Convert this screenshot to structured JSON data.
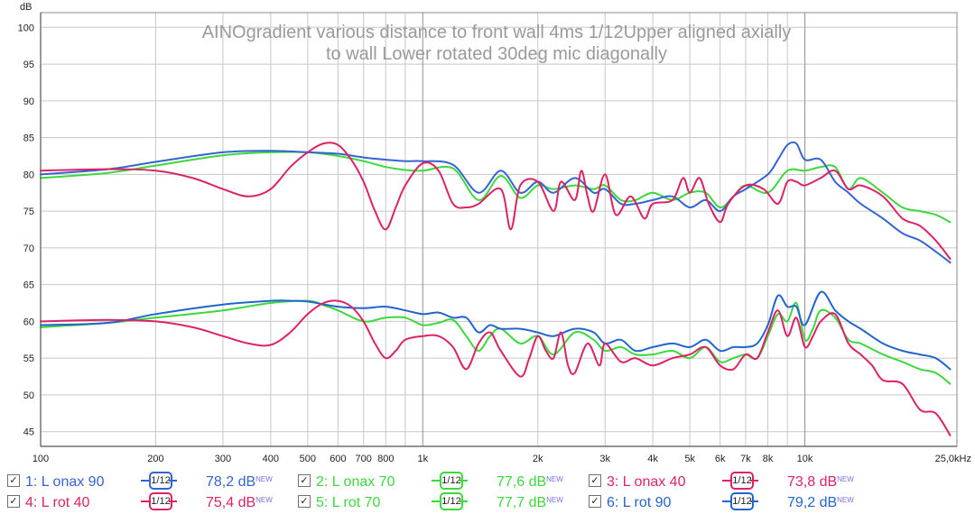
{
  "chart_data": {
    "type": "line",
    "title": "AINOgradient various distance to front wall 4ms 1/12Upper aligned axially to wall  Lower rotated 30deg mic diagonally",
    "title_lines": [
      "AINOgradient various distance to front wall 4ms 1/12Upper aligned axially",
      "to wall  Lower rotated 30deg mic diagonally"
    ],
    "ylabel": "dB",
    "xunit_label": "25,0kHz",
    "xscale": "log",
    "xlim": [
      100,
      25000
    ],
    "ylim": [
      43,
      102
    ],
    "grid": true,
    "y_ticks": [
      45,
      50,
      55,
      60,
      65,
      70,
      75,
      80,
      85,
      90,
      95,
      100
    ],
    "x_ticks": [
      {
        "v": 100,
        "label": "100"
      },
      {
        "v": 200,
        "label": "200"
      },
      {
        "v": 300,
        "label": "300"
      },
      {
        "v": 400,
        "label": "400"
      },
      {
        "v": 500,
        "label": "500"
      },
      {
        "v": 600,
        "label": "600"
      },
      {
        "v": 700,
        "label": "700"
      },
      {
        "v": 800,
        "label": "800"
      },
      {
        "v": 1000,
        "label": "1k"
      },
      {
        "v": 2000,
        "label": "2k"
      },
      {
        "v": 3000,
        "label": "3k"
      },
      {
        "v": 4000,
        "label": "4k"
      },
      {
        "v": 5000,
        "label": "5k"
      },
      {
        "v": 6000,
        "label": "6k"
      },
      {
        "v": 7000,
        "label": "7k"
      },
      {
        "v": 8000,
        "label": "8k"
      },
      {
        "v": 10000,
        "label": "10k"
      }
    ],
    "x_minor_ticks": [
      900,
      9000
    ],
    "x_major_lines": [
      100,
      1000,
      10000
    ],
    "series": [
      {
        "name": "1: L onax 90",
        "color": "#3464d0",
        "smoothing": "1/12",
        "level": "78,2 dB",
        "x": [
          100,
          150,
          200,
          300,
          400,
          500,
          600,
          700,
          800,
          900,
          1000,
          1200,
          1400,
          1600,
          1800,
          2000,
          2200,
          2500,
          2800,
          3000,
          3300,
          3600,
          4000,
          4500,
          5000,
          5500,
          6000,
          6500,
          7000,
          8000,
          8500,
          9000,
          9500,
          10000,
          11000,
          12000,
          13000,
          14000,
          16000,
          18000,
          20000,
          22000,
          24000
        ],
        "y": [
          80.0,
          80.7,
          81.7,
          83.0,
          83.2,
          83.0,
          82.8,
          82.3,
          82.0,
          81.8,
          81.8,
          81.3,
          77.5,
          80.5,
          77.5,
          79.0,
          77.5,
          79.5,
          77.5,
          78.0,
          76.0,
          76.0,
          76.5,
          77.0,
          75.5,
          76.5,
          75.0,
          77.0,
          78.0,
          80.0,
          82.0,
          84.0,
          84.2,
          82.0,
          82.0,
          79.0,
          77.5,
          76.0,
          74.0,
          72.0,
          71.0,
          69.5,
          68.0
        ]
      },
      {
        "name": "2: L onax 70",
        "color": "#3cd83c",
        "smoothing": "1/12",
        "level": "77,6 dB",
        "x": [
          100,
          150,
          200,
          300,
          400,
          500,
          600,
          700,
          800,
          900,
          1000,
          1200,
          1400,
          1600,
          1800,
          2000,
          2200,
          2500,
          2800,
          3000,
          3300,
          3600,
          4000,
          4500,
          5000,
          5500,
          6000,
          6500,
          7000,
          8000,
          9000,
          10000,
          11000,
          12000,
          13000,
          14000,
          16000,
          18000,
          20000,
          22000,
          24000
        ],
        "y": [
          79.5,
          80.2,
          81.2,
          82.6,
          83.0,
          83.0,
          82.5,
          81.8,
          81.0,
          80.6,
          80.5,
          80.8,
          76.5,
          79.8,
          76.8,
          78.5,
          78.0,
          78.5,
          78.0,
          78.5,
          76.5,
          76.5,
          77.5,
          76.5,
          77.5,
          77.5,
          75.5,
          77.0,
          78.5,
          77.5,
          80.5,
          80.5,
          81.0,
          81.0,
          78.0,
          79.5,
          77.5,
          75.5,
          75.0,
          74.5,
          73.5
        ]
      },
      {
        "name": "3: L onax 40",
        "color": "#dd2266",
        "smoothing": "1/12",
        "level": "73,8 dB",
        "x": [
          100,
          150,
          200,
          250,
          300,
          350,
          400,
          450,
          500,
          550,
          600,
          650,
          700,
          750,
          800,
          850,
          900,
          1000,
          1100,
          1200,
          1300,
          1400,
          1600,
          1700,
          1800,
          2000,
          2200,
          2300,
          2500,
          2600,
          2700,
          2800,
          3000,
          3200,
          3500,
          3800,
          4000,
          4500,
          4800,
          5000,
          5300,
          5600,
          6000,
          6300,
          7000,
          7800,
          8500,
          9000,
          9500,
          10000,
          11000,
          12000,
          13000,
          14000,
          16000,
          18000,
          20000,
          22000,
          24000
        ],
        "y": [
          80.5,
          80.7,
          80.5,
          79.5,
          78.0,
          77.0,
          78.0,
          81.0,
          83.0,
          84.2,
          84.0,
          82.0,
          79.0,
          75.0,
          72.5,
          75.5,
          78.5,
          81.5,
          80.5,
          76.0,
          75.5,
          76.0,
          78.0,
          72.5,
          78.5,
          79.0,
          75.0,
          79.0,
          76.5,
          80.5,
          77.0,
          75.0,
          80.0,
          74.5,
          77.0,
          74.0,
          76.0,
          76.5,
          79.5,
          77.5,
          79.5,
          76.0,
          73.5,
          76.0,
          78.5,
          78.0,
          76.0,
          79.0,
          79.0,
          78.5,
          79.5,
          80.5,
          78.0,
          78.5,
          77.0,
          74.0,
          73.0,
          71.0,
          68.5
        ]
      },
      {
        "name": "4: L rot 40",
        "color": "#dd2266",
        "smoothing": "1/12",
        "level": "75,4 dB",
        "x": [
          100,
          150,
          200,
          250,
          300,
          350,
          400,
          450,
          500,
          550,
          600,
          650,
          700,
          750,
          800,
          850,
          900,
          1000,
          1100,
          1200,
          1300,
          1400,
          1500,
          1600,
          1800,
          1900,
          2000,
          2100,
          2200,
          2300,
          2400,
          2500,
          2700,
          2900,
          3000,
          3300,
          3600,
          4000,
          4500,
          5000,
          5500,
          6000,
          6500,
          7000,
          7500,
          8000,
          8500,
          9000,
          9500,
          10000,
          10500,
          11000,
          12000,
          13000,
          14000,
          15000,
          16000,
          18000,
          20000,
          22000,
          24000
        ],
        "y": [
          60.0,
          60.2,
          60.0,
          59.2,
          58.0,
          57.0,
          56.8,
          58.5,
          61.0,
          62.5,
          62.8,
          62.0,
          60.0,
          57.0,
          55.0,
          56.0,
          57.5,
          58.0,
          58.0,
          56.5,
          53.5,
          57.0,
          58.5,
          56.0,
          52.5,
          55.0,
          58.0,
          56.0,
          55.0,
          58.5,
          54.0,
          53.0,
          57.0,
          54.0,
          57.0,
          54.5,
          55.0,
          54.0,
          55.0,
          55.5,
          56.5,
          54.0,
          53.5,
          55.5,
          55.0,
          58.5,
          61.5,
          58.0,
          60.5,
          56.5,
          58.0,
          60.0,
          61.0,
          57.0,
          55.5,
          54.0,
          52.0,
          51.5,
          48.0,
          47.5,
          44.5
        ]
      },
      {
        "name": "5: L rot 70",
        "color": "#3cd83c",
        "smoothing": "1/12",
        "level": "77,7 dB",
        "x": [
          100,
          150,
          200,
          300,
          400,
          500,
          550,
          600,
          700,
          800,
          900,
          1000,
          1100,
          1200,
          1300,
          1400,
          1500,
          1600,
          1800,
          2000,
          2200,
          2500,
          2800,
          3000,
          3300,
          3600,
          4000,
          4500,
          5000,
          5500,
          6000,
          6500,
          7000,
          7500,
          8000,
          8500,
          9000,
          9500,
          10000,
          10500,
          11000,
          12000,
          13000,
          14000,
          16000,
          18000,
          20000,
          22000,
          24000
        ],
        "y": [
          59.2,
          59.8,
          60.5,
          61.5,
          62.5,
          62.8,
          62.2,
          61.5,
          60.0,
          60.5,
          60.5,
          59.5,
          59.8,
          60.2,
          58.0,
          56.0,
          58.0,
          59.0,
          57.0,
          58.0,
          55.5,
          58.5,
          57.5,
          56.0,
          56.5,
          55.5,
          55.5,
          56.0,
          55.0,
          56.5,
          54.5,
          55.0,
          55.5,
          55.0,
          58.0,
          61.0,
          60.0,
          62.5,
          57.5,
          59.0,
          61.5,
          60.5,
          57.5,
          57.0,
          55.5,
          54.5,
          53.5,
          53.0,
          51.5
        ]
      },
      {
        "name": "6: L rot 90",
        "color": "#2266cc",
        "smoothing": "1/12",
        "level": "79,2 dB",
        "x": [
          100,
          150,
          200,
          300,
          400,
          450,
          500,
          600,
          700,
          800,
          900,
          1000,
          1100,
          1200,
          1300,
          1400,
          1500,
          1600,
          1800,
          2000,
          2200,
          2500,
          2800,
          3000,
          3300,
          3600,
          4000,
          4500,
          5000,
          5500,
          6000,
          6500,
          7000,
          7500,
          8000,
          8500,
          9000,
          9500,
          10000,
          11000,
          12000,
          13000,
          14000,
          16000,
          18000,
          20000,
          22000,
          24000
        ],
        "y": [
          59.5,
          59.8,
          61.0,
          62.3,
          62.8,
          62.8,
          62.7,
          62.0,
          61.8,
          62.0,
          61.5,
          61.0,
          61.2,
          60.5,
          60.5,
          58.5,
          59.5,
          59.0,
          59.0,
          58.5,
          58.0,
          59.0,
          58.5,
          57.0,
          57.5,
          56.0,
          56.5,
          57.0,
          56.5,
          57.5,
          56.0,
          56.5,
          56.5,
          57.0,
          59.5,
          63.5,
          62.0,
          62.0,
          59.5,
          64.0,
          61.5,
          60.0,
          59.0,
          57.0,
          56.0,
          55.5,
          55.0,
          53.5
        ]
      }
    ]
  },
  "legend": {
    "checkbox_mark": "✓",
    "new_badge": "NEW"
  }
}
